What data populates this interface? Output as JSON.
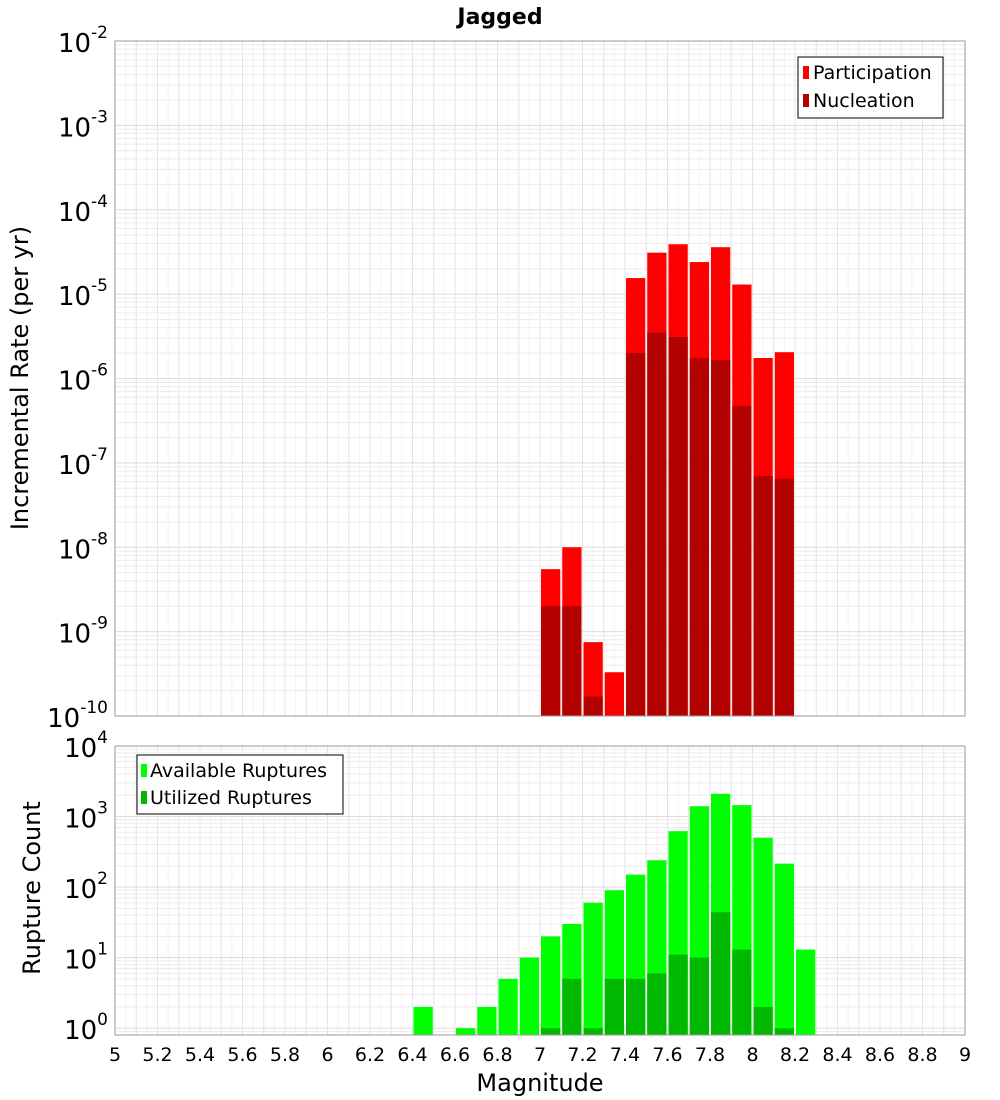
{
  "chart_data": [
    {
      "type": "bar",
      "title": "Jagged",
      "xlabel": "",
      "ylabel": "Incremental Rate (per yr)",
      "xlim": [
        5,
        9
      ],
      "ylim": [
        1e-10,
        0.01
      ],
      "yscale": "log",
      "y_ticks": [
        "10^-10",
        "10^-9",
        "10^-8",
        "10^-7",
        "10^-6",
        "10^-5",
        "10^-4",
        "10^-3",
        "10^-2"
      ],
      "grid": true,
      "legend_position": "top-right",
      "bin_width": 0.1,
      "x": [
        7.05,
        7.15,
        7.25,
        7.35,
        7.45,
        7.55,
        7.65,
        7.75,
        7.85,
        7.95,
        8.05,
        8.15
      ],
      "series": [
        {
          "name": "Participation",
          "color": "#ff0000",
          "values": [
            5.5e-09,
            1e-08,
            7.5e-10,
            3.3e-10,
            1.55e-05,
            3.1e-05,
            3.9e-05,
            2.4e-05,
            3.6e-05,
            1.3e-05,
            1.75e-06,
            2.05e-06
          ]
        },
        {
          "name": "Nucleation",
          "color": "#b30000",
          "values": [
            2e-09,
            2e-09,
            1.7e-10,
            null,
            2e-06,
            3.5e-06,
            3.1e-06,
            1.75e-06,
            1.65e-06,
            4.7e-07,
            7e-08,
            6.5e-08
          ]
        }
      ]
    },
    {
      "type": "bar",
      "title": "",
      "xlabel": "Magnitude",
      "ylabel": "Rupture Count",
      "xlim": [
        5,
        9
      ],
      "ylim": [
        0.8,
        10000
      ],
      "yscale": "log",
      "y_ticks": [
        "10^0",
        "10^1",
        "10^2",
        "10^3",
        "10^4"
      ],
      "x_ticks": [
        "5",
        "5.2",
        "5.4",
        "5.6",
        "5.8",
        "6",
        "6.2",
        "6.4",
        "6.6",
        "6.8",
        "7",
        "7.2",
        "7.4",
        "7.6",
        "7.8",
        "8",
        "8.2",
        "8.4",
        "8.6",
        "8.8",
        "9"
      ],
      "grid": true,
      "legend_position": "top-left",
      "bin_width": 0.1,
      "x": [
        6.45,
        6.65,
        6.75,
        6.85,
        6.95,
        7.05,
        7.15,
        7.25,
        7.35,
        7.45,
        7.55,
        7.65,
        7.75,
        7.85,
        7.95,
        8.05,
        8.15,
        8.25
      ],
      "series": [
        {
          "name": "Available Ruptures",
          "color": "#00ff00",
          "values": [
            2,
            1,
            2,
            5,
            10,
            20,
            30,
            60,
            90,
            150,
            240,
            620,
            1400,
            2100,
            1450,
            500,
            215,
            13
          ]
        },
        {
          "name": "Utilized Ruptures",
          "color": "#00b800",
          "values": [
            null,
            null,
            null,
            null,
            null,
            1,
            5,
            1,
            5,
            5,
            6,
            11,
            10,
            44,
            13,
            2,
            1,
            null
          ]
        }
      ]
    }
  ]
}
